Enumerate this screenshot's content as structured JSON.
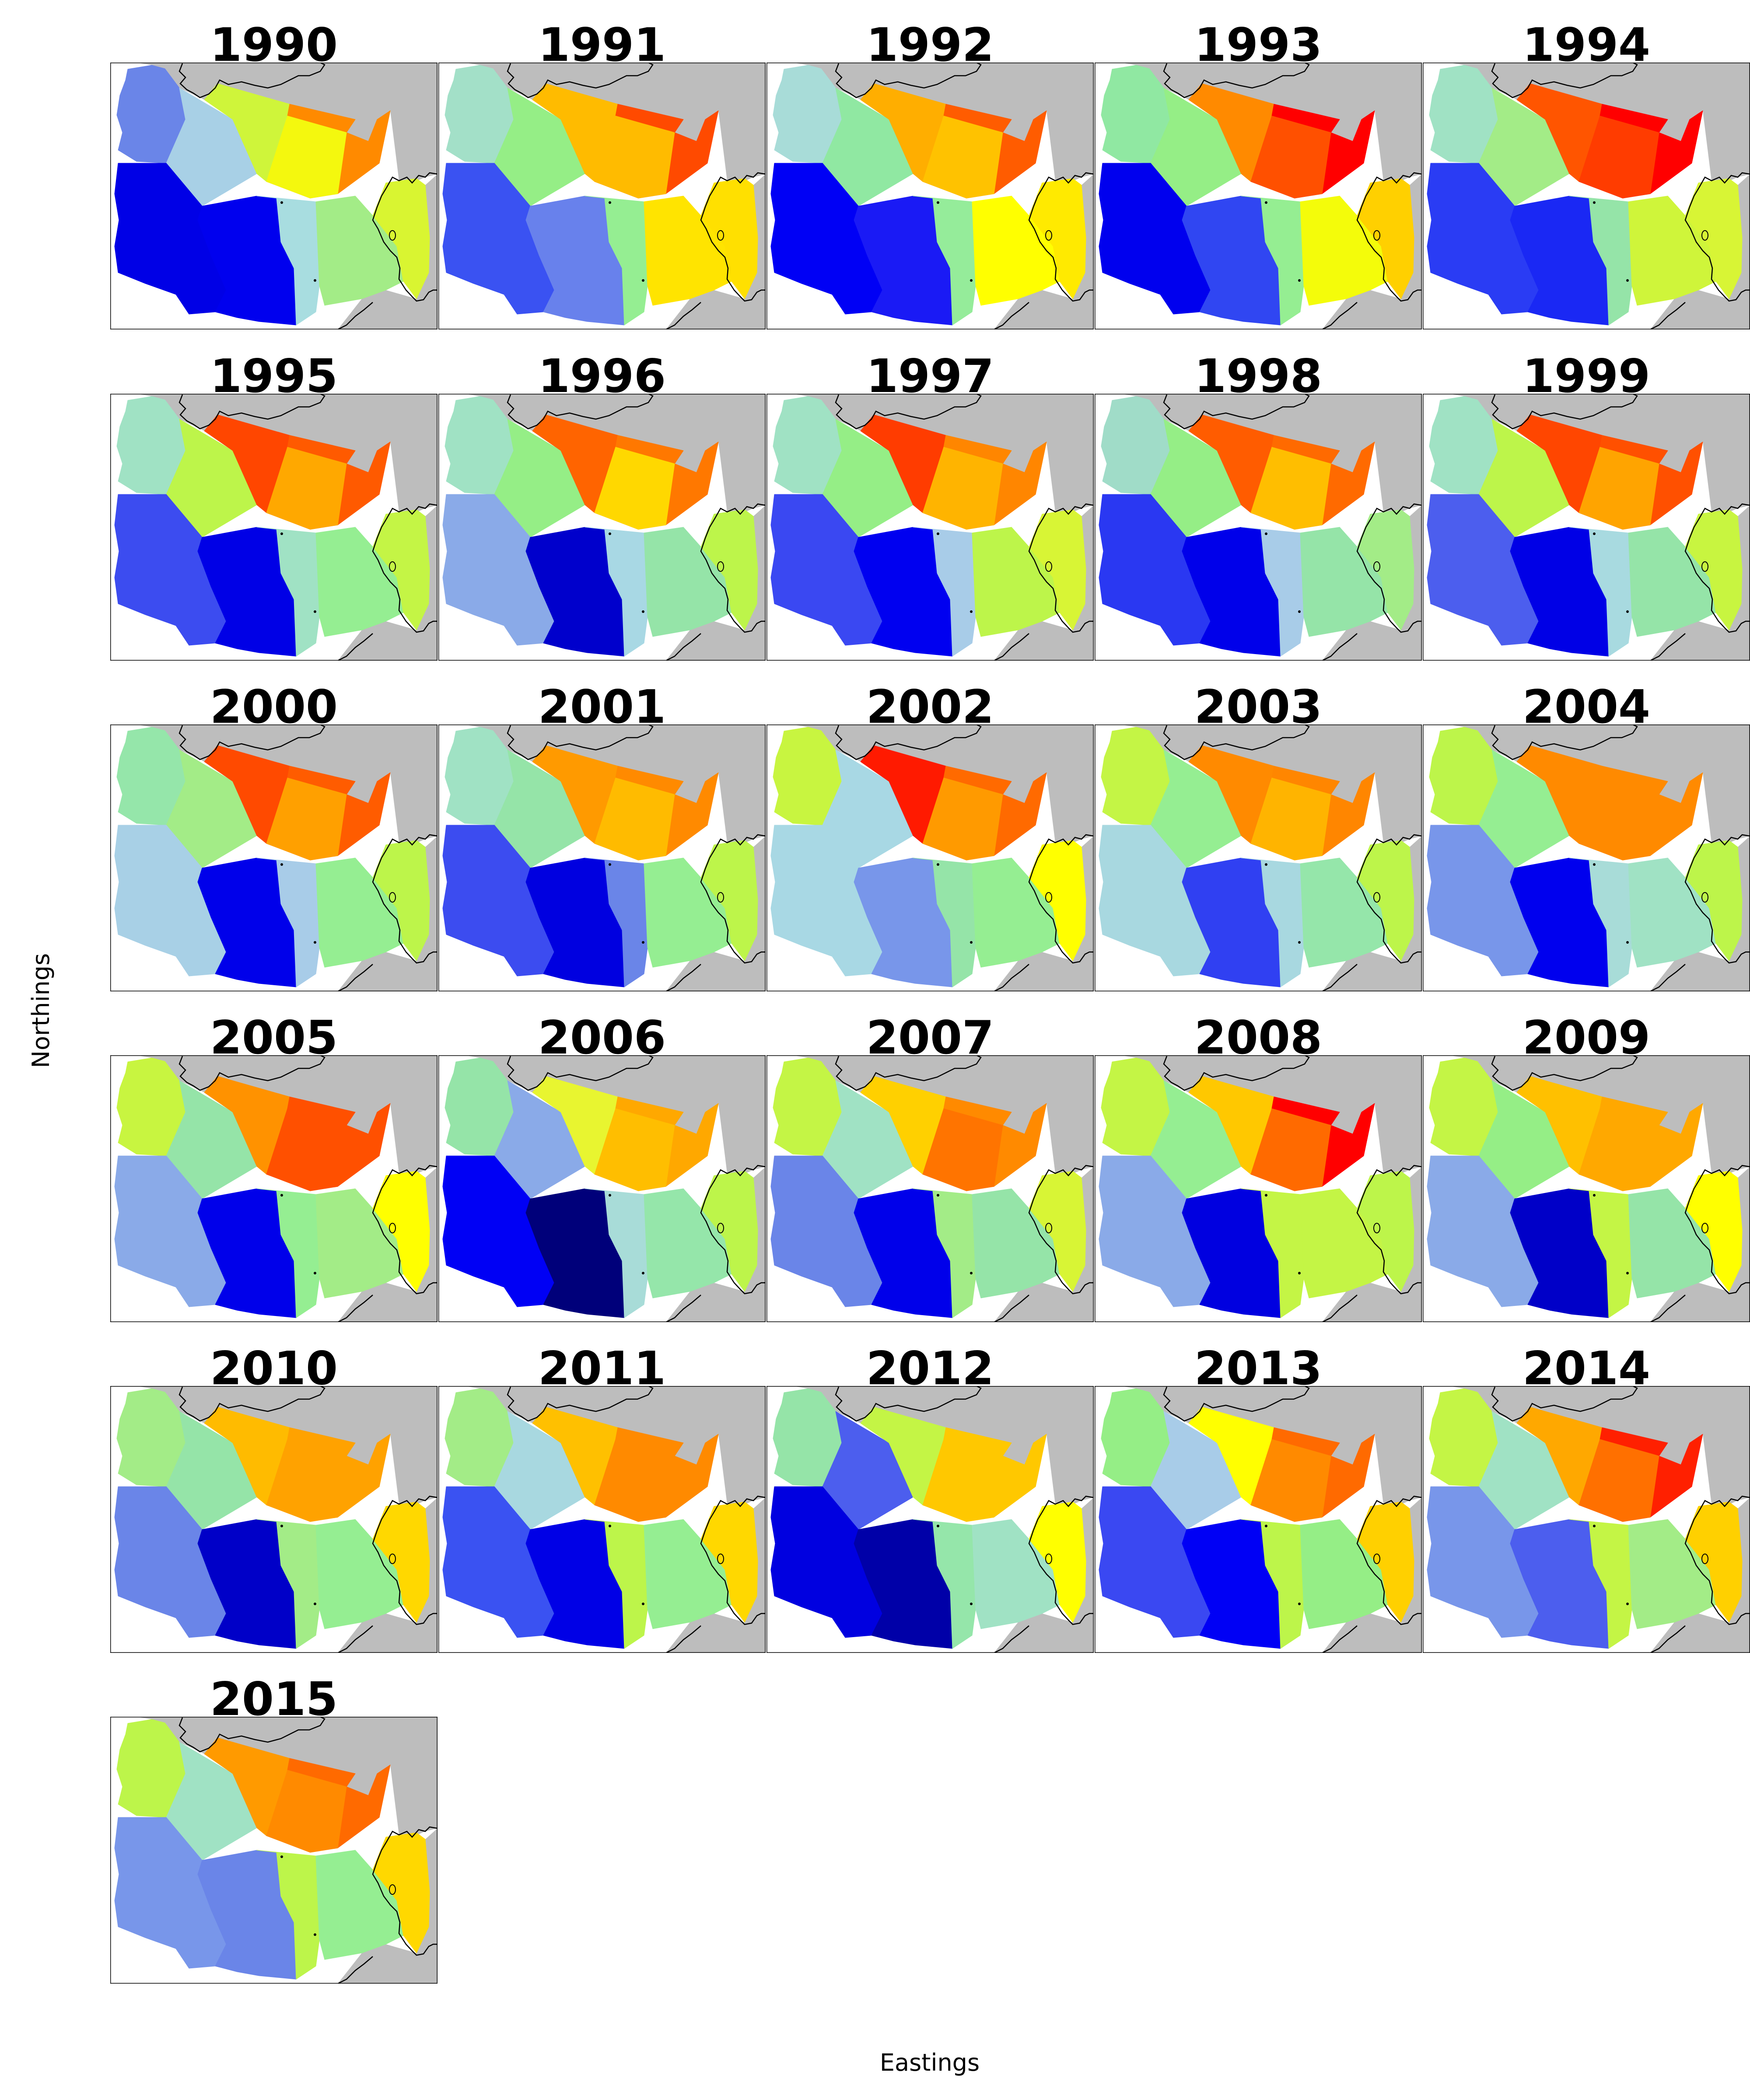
{
  "figure": {
    "xlabel": "Eastings",
    "ylabel": "Northings"
  },
  "colors": {
    "land": "#bdbdbd",
    "sea": "#ffffff",
    "coast": "#000000"
  },
  "panels": [
    {
      "year": "1990",
      "zones": {
        "A": "#6a85e8",
        "B": "#a8d0e6",
        "C": "#cff53a",
        "D": "#ff8a00",
        "E": "#f4f80e",
        "F": "#0000e6",
        "G": "#0000ee",
        "H": "#a8dde0",
        "I": "#a3ec87",
        "J": "#d9f531"
      }
    },
    {
      "year": "1991",
      "zones": {
        "A": "#a3e0c8",
        "B": "#95ee86",
        "C": "#ffbb00",
        "D": "#ff4a00",
        "E": "#ffbb00",
        "F": "#3a52f2",
        "G": "#6881ec",
        "H": "#95ee92",
        "I": "#ffe400",
        "J": "#ffe000"
      }
    },
    {
      "year": "1992",
      "zones": {
        "A": "#a8dcd8",
        "B": "#90e8a2",
        "C": "#ffae00",
        "D": "#ff5c00",
        "E": "#ffc200",
        "F": "#0000f5",
        "G": "#1a1af5",
        "H": "#95ec9a",
        "I": "#ffff00",
        "J": "#ffea00"
      }
    },
    {
      "year": "1993",
      "zones": {
        "A": "#90e8a2",
        "B": "#95ee86",
        "C": "#ff8a00",
        "D": "#ff0000",
        "E": "#ff5000",
        "F": "#0000ee",
        "G": "#3046f2",
        "H": "#95ee92",
        "I": "#f4fc0a",
        "J": "#ffd000"
      }
    },
    {
      "year": "1994",
      "zones": {
        "A": "#a0e2c4",
        "B": "#a3ec87",
        "C": "#ff5500",
        "D": "#ff0000",
        "E": "#ff3c00",
        "F": "#2a3cf4",
        "G": "#1a28f4",
        "H": "#95e4a8",
        "I": "#cff53a",
        "J": "#d8f535"
      }
    },
    {
      "year": "1995",
      "zones": {
        "A": "#a0e2c4",
        "B": "#bdf54a",
        "C": "#ff4600",
        "D": "#ff5a00",
        "E": "#ffa800",
        "F": "#3c4cf0",
        "G": "#0000e6",
        "H": "#a0e2c4",
        "I": "#95ee92",
        "J": "#c4f545"
      }
    },
    {
      "year": "1996",
      "zones": {
        "A": "#a0e2c4",
        "B": "#95ee86",
        "C": "#ff6400",
        "D": "#ff7800",
        "E": "#ffd800",
        "F": "#8aaae8",
        "G": "#0000cc",
        "H": "#a8d8e4",
        "I": "#95e4a8",
        "J": "#bdf54a"
      }
    },
    {
      "year": "1997",
      "zones": {
        "A": "#a0e2c4",
        "B": "#95ee86",
        "C": "#ff3c00",
        "D": "#ff8600",
        "E": "#ffb400",
        "F": "#3a48f2",
        "G": "#0000f0",
        "H": "#a8cce8",
        "I": "#bdf54a",
        "J": "#d8f535"
      }
    },
    {
      "year": "1998",
      "zones": {
        "A": "#a0dcc8",
        "B": "#95ee86",
        "C": "#ff5c00",
        "D": "#ff6a00",
        "E": "#ffbe00",
        "F": "#2a38f2",
        "G": "#0000ea",
        "H": "#a8cce8",
        "I": "#95e4a8",
        "J": "#a3ec87"
      }
    },
    {
      "year": "1999",
      "zones": {
        "A": "#a0e2c4",
        "B": "#bdf54a",
        "C": "#ff4600",
        "D": "#ff5000",
        "E": "#ffa400",
        "F": "#4c5eee",
        "G": "#0000e6",
        "H": "#a8dae0",
        "I": "#95e4a8",
        "J": "#c8f540"
      }
    },
    {
      "year": "2000",
      "zones": {
        "A": "#95e6aa",
        "B": "#a3ec87",
        "C": "#ff4a00",
        "D": "#ff5c00",
        "E": "#ffa000",
        "F": "#a8d0e6",
        "G": "#0000ea",
        "H": "#a8cce8",
        "I": "#95ee92",
        "J": "#bdf54a"
      }
    },
    {
      "year": "2001",
      "zones": {
        "A": "#a0e2c4",
        "B": "#95e4a8",
        "C": "#ff9a00",
        "D": "#ff8a00",
        "E": "#ffbb00",
        "F": "#3c4cf0",
        "G": "#0000e0",
        "H": "#6a85e8",
        "I": "#95ee92",
        "J": "#bdf54a"
      }
    },
    {
      "year": "2002",
      "zones": {
        "A": "#c8f540",
        "B": "#a8d8e4",
        "C": "#ff1a00",
        "D": "#ff6a00",
        "E": "#ff9a00",
        "F": "#a8d8e4",
        "G": "#7896ea",
        "H": "#95e4a8",
        "I": "#95ee92",
        "J": "#ffff00"
      }
    },
    {
      "year": "2003",
      "zones": {
        "A": "#c4f545",
        "B": "#95ee92",
        "C": "#ff8a00",
        "D": "#ff8600",
        "E": "#ffb400",
        "F": "#a8d8e0",
        "G": "#3040f2",
        "H": "#a8d8e0",
        "I": "#95e6aa",
        "J": "#bdf54a"
      }
    },
    {
      "year": "2004",
      "zones": {
        "A": "#bdf54a",
        "B": "#95ee92",
        "C": "#ff8a00",
        "D": "#ff8a00",
        "E": "#ff8a00",
        "F": "#7896ea",
        "G": "#0000ee",
        "H": "#a8dcd8",
        "I": "#a0e2c4",
        "J": "#bdf54a"
      }
    },
    {
      "year": "2005",
      "zones": {
        "A": "#c8f540",
        "B": "#95e4a8",
        "C": "#ff9200",
        "D": "#ff5000",
        "E": "#ff5000",
        "F": "#8aaae8",
        "G": "#0000ea",
        "H": "#95ee92",
        "I": "#a3ec87",
        "J": "#ffff00"
      }
    },
    {
      "year": "2006",
      "zones": {
        "A": "#95e4a8",
        "B": "#8aaae8",
        "C": "#e8f530",
        "D": "#ffa800",
        "E": "#ffbe00",
        "F": "#0000f5",
        "G": "#00007a",
        "H": "#a8dcd8",
        "I": "#95e6aa",
        "J": "#bdf54a"
      }
    },
    {
      "year": "2007",
      "zones": {
        "A": "#c4f545",
        "B": "#a0e2c4",
        "C": "#ffd000",
        "D": "#ff8a00",
        "E": "#ff7400",
        "F": "#6a85e8",
        "G": "#0000ea",
        "H": "#a3ec87",
        "I": "#95e4a8",
        "J": "#d8f535"
      }
    },
    {
      "year": "2008",
      "zones": {
        "A": "#c4f545",
        "B": "#95ee92",
        "C": "#ffc800",
        "D": "#ff0000",
        "E": "#ff6a00",
        "F": "#8aaae8",
        "G": "#0000e0",
        "H": "#c4f545",
        "I": "#c4f545",
        "J": "#bdf54a"
      }
    },
    {
      "year": "2009",
      "zones": {
        "A": "#c4f545",
        "B": "#95ee86",
        "C": "#ffc000",
        "D": "#ffa800",
        "E": "#ffa800",
        "F": "#8aaae8",
        "G": "#0000c8",
        "H": "#c4f545",
        "I": "#95e4a8",
        "J": "#ffff00"
      }
    },
    {
      "year": "2010",
      "zones": {
        "A": "#a3ec87",
        "B": "#95e4a8",
        "C": "#ffbb00",
        "D": "#ffa200",
        "E": "#ffa200",
        "F": "#6a85e8",
        "G": "#0000c8",
        "H": "#a3ec87",
        "I": "#95ee92",
        "J": "#ffd800"
      }
    },
    {
      "year": "2011",
      "zones": {
        "A": "#a3ec87",
        "B": "#a8d8e0",
        "C": "#ffc000",
        "D": "#ff8a00",
        "E": "#ff8a00",
        "F": "#3a52f2",
        "G": "#0000e6",
        "H": "#bdf54a",
        "I": "#95ee92",
        "J": "#ffd800"
      }
    },
    {
      "year": "2012",
      "zones": {
        "A": "#95e4a8",
        "B": "#4c5eee",
        "C": "#c4f545",
        "D": "#ffc800",
        "E": "#ffc800",
        "F": "#0000e0",
        "G": "#0000a8",
        "H": "#95e6aa",
        "I": "#a0e2c4",
        "J": "#ffff00"
      }
    },
    {
      "year": "2013",
      "zones": {
        "A": "#95ee86",
        "B": "#a8cce8",
        "C": "#ffff00",
        "D": "#ff6a00",
        "E": "#ff8a00",
        "F": "#3a48f2",
        "G": "#0000f5",
        "H": "#bdf54a",
        "I": "#95ee86",
        "J": "#ffd000"
      }
    },
    {
      "year": "2014",
      "zones": {
        "A": "#c4f545",
        "B": "#a0e2c4",
        "C": "#ffa800",
        "D": "#ff2000",
        "E": "#ff7000",
        "F": "#7896ea",
        "G": "#4c5eee",
        "H": "#c4f545",
        "I": "#a3ec87",
        "J": "#ffd000"
      }
    },
    {
      "year": "2015",
      "zones": {
        "A": "#bdf54a",
        "B": "#a0e2c4",
        "C": "#ff9a00",
        "D": "#ff6a00",
        "E": "#ff8a00",
        "F": "#7896ea",
        "G": "#6a85e8",
        "H": "#bdf54a",
        "I": "#95ee92",
        "J": "#ffd800"
      }
    }
  ]
}
